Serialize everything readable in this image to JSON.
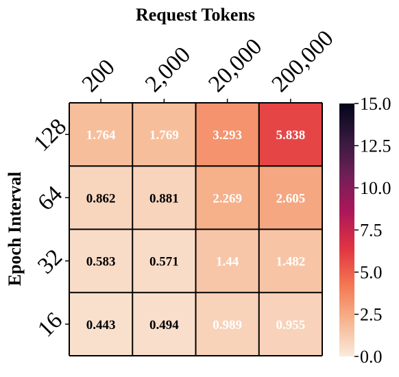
{
  "chart_data": {
    "type": "heatmap",
    "title": "Request Tokens",
    "xlabel": "Request Tokens",
    "ylabel": "Epoch Interval",
    "x_categories": [
      "200",
      "2,000",
      "20,000",
      "200,000"
    ],
    "y_categories": [
      "128",
      "64",
      "32",
      "16"
    ],
    "values": [
      [
        1.764,
        1.769,
        3.293,
        5.838
      ],
      [
        0.862,
        0.881,
        2.269,
        2.605
      ],
      [
        0.583,
        0.571,
        1.44,
        1.482
      ],
      [
        0.443,
        0.494,
        0.989,
        0.955
      ]
    ],
    "value_labels": [
      [
        "1.764",
        "1.769",
        "3.293",
        "5.838"
      ],
      [
        "0.862",
        "0.881",
        "2.269",
        "2.605"
      ],
      [
        "0.583",
        "0.571",
        "1.44",
        "1.482"
      ],
      [
        "0.443",
        "0.494",
        "0.989",
        "0.955"
      ]
    ],
    "colorbar": {
      "range": [
        0,
        15
      ],
      "ticks": [
        "0.0",
        "2.5",
        "5.0",
        "7.5",
        "10.0",
        "12.5",
        "15.0"
      ],
      "colormap": [
        "#faebdd",
        "#f6b48e",
        "#f37651",
        "#e13342",
        "#ad1759",
        "#701f57",
        "#35193e",
        "#03051a"
      ]
    },
    "grid": true,
    "legend": "colorbar-right"
  }
}
